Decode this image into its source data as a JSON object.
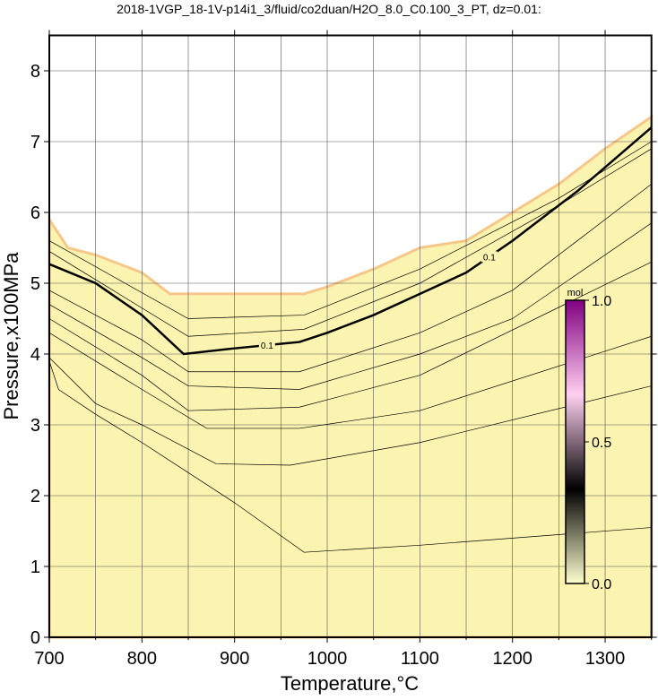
{
  "chart_data": {
    "type": "contour",
    "title": "2018-1VGP_18-1V-p14i1_3/fluid/co2duan/H2O_8.0_C0.100_3_PT, dz=0.01:",
    "x_label": "Temperature,°C",
    "y_label": "Pressure,x100MPa",
    "xlim": [
      700,
      1350
    ],
    "ylim": [
      0,
      8.5
    ],
    "xticks": [
      700,
      800,
      900,
      1000,
      1100,
      1200,
      1300
    ],
    "yticks": [
      0,
      1,
      2,
      3,
      4,
      5,
      6,
      7,
      8
    ],
    "x_minor_ticks": [
      750,
      850,
      950,
      1050,
      1150,
      1250,
      1350
    ],
    "grid": true,
    "fill_color": "#fbf3b0",
    "boundary": {
      "x": [
        700,
        720,
        750,
        800,
        830,
        850,
        900,
        975,
        1000,
        1050,
        1100,
        1150,
        1200,
        1250,
        1300,
        1350
      ],
      "y": [
        5.9,
        5.5,
        5.4,
        5.15,
        4.85,
        4.85,
        4.85,
        4.85,
        4.95,
        5.2,
        5.5,
        5.6,
        6.0,
        6.4,
        6.9,
        7.35
      ]
    },
    "series": [
      {
        "color": "#000000",
        "x": [
          700,
          850,
          975,
          1100,
          1250,
          1350
        ],
        "values": [
          5.6,
          4.5,
          4.55,
          5.2,
          6.2,
          7.0
        ]
      },
      {
        "color": "#000000",
        "x": [
          700,
          850,
          975,
          1100,
          1250,
          1350
        ],
        "values": [
          5.45,
          4.25,
          4.35,
          5.0,
          6.1,
          6.9
        ]
      },
      {
        "color": "#000000",
        "label": "0.1",
        "bold": true,
        "x": [
          700,
          750,
          800,
          845,
          900,
          970,
          1000,
          1050,
          1100,
          1150,
          1200,
          1270,
          1350
        ],
        "values": [
          5.27,
          5.0,
          4.55,
          4.0,
          4.08,
          4.17,
          4.3,
          4.55,
          4.85,
          5.15,
          5.6,
          6.3,
          7.2
        ]
      },
      {
        "color": "#000000",
        "x": [
          700,
          800,
          850,
          970,
          1100,
          1200,
          1350
        ],
        "values": [
          4.9,
          4.2,
          3.75,
          3.75,
          4.3,
          4.9,
          6.4
        ]
      },
      {
        "color": "#000000",
        "x": [
          700,
          800,
          850,
          970,
          1100,
          1200,
          1350
        ],
        "values": [
          4.7,
          3.95,
          3.55,
          3.5,
          4.0,
          4.5,
          5.85
        ]
      },
      {
        "color": "#000000",
        "x": [
          700,
          800,
          850,
          970,
          1100,
          1350
        ],
        "values": [
          4.5,
          3.7,
          3.2,
          3.25,
          3.7,
          5.3
        ]
      },
      {
        "color": "#000000",
        "x": [
          700,
          800,
          870,
          970,
          1100,
          1350
        ],
        "values": [
          4.3,
          3.5,
          2.95,
          2.95,
          3.2,
          4.25
        ]
      },
      {
        "color": "#000000",
        "x": [
          700,
          750,
          800,
          880,
          960,
          1100,
          1350
        ],
        "values": [
          3.95,
          3.3,
          3.0,
          2.45,
          2.43,
          2.75,
          3.55
        ]
      },
      {
        "color": "#000000",
        "x": [
          700,
          710,
          750,
          800,
          900,
          975,
          1100,
          1350
        ],
        "values": [
          3.9,
          3.5,
          3.15,
          2.75,
          1.9,
          1.2,
          1.3,
          1.55
        ]
      }
    ],
    "colorbar": {
      "label": "mol",
      "lim": [
        0,
        1
      ],
      "ticks": [
        {
          "value": 0,
          "label": "0.0"
        },
        {
          "value": 0.5,
          "label": "0.5"
        },
        {
          "value": 1,
          "label": "1.0"
        }
      ],
      "colors": [
        "#ffffd0",
        "#000000",
        "#ffd0f0",
        "#800080"
      ]
    }
  }
}
